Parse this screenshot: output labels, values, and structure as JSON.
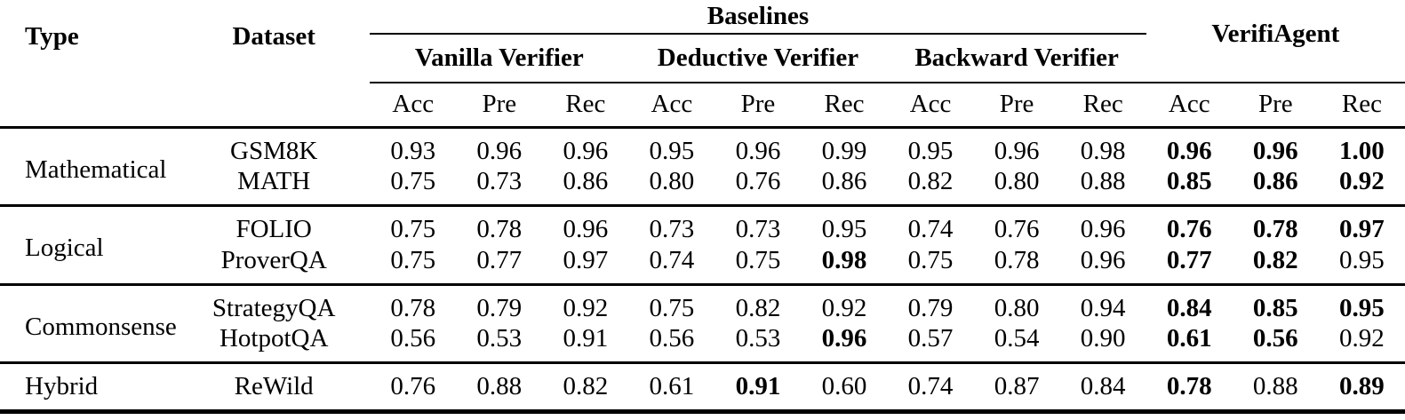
{
  "table": {
    "colors": {
      "text": "#000000",
      "background": "#ffffff",
      "rule": "#000000"
    },
    "headers": {
      "type": "Type",
      "dataset": "Dataset",
      "baselines_group": "Baselines",
      "verifiagent_group": "VerifiAgent",
      "verifier_groups": [
        "Vanilla Verifier",
        "Deductive Verifier",
        "Backward Verifier"
      ],
      "metric_headers": [
        "Acc",
        "Pre",
        "Rec",
        "Acc",
        "Pre",
        "Rec",
        "Acc",
        "Pre",
        "Rec",
        "Acc",
        "Pre",
        "Rec"
      ]
    },
    "sections": [
      {
        "type": "Mathematical",
        "rows": [
          {
            "dataset": "GSM8K",
            "values": [
              {
                "v": "0.93"
              },
              {
                "v": "0.96"
              },
              {
                "v": "0.96"
              },
              {
                "v": "0.95"
              },
              {
                "v": "0.96"
              },
              {
                "v": "0.99"
              },
              {
                "v": "0.95"
              },
              {
                "v": "0.96"
              },
              {
                "v": "0.98"
              },
              {
                "v": "0.96",
                "b": true
              },
              {
                "v": "0.96",
                "b": true
              },
              {
                "v": "1.00",
                "b": true
              }
            ]
          },
          {
            "dataset": "MATH",
            "values": [
              {
                "v": "0.75"
              },
              {
                "v": "0.73"
              },
              {
                "v": "0.86"
              },
              {
                "v": "0.80"
              },
              {
                "v": "0.76"
              },
              {
                "v": "0.86"
              },
              {
                "v": "0.82"
              },
              {
                "v": "0.80"
              },
              {
                "v": "0.88"
              },
              {
                "v": "0.85",
                "b": true
              },
              {
                "v": "0.86",
                "b": true
              },
              {
                "v": "0.92",
                "b": true
              }
            ]
          }
        ]
      },
      {
        "type": "Logical",
        "rows": [
          {
            "dataset": "FOLIO",
            "values": [
              {
                "v": "0.75"
              },
              {
                "v": "0.78"
              },
              {
                "v": "0.96"
              },
              {
                "v": "0.73"
              },
              {
                "v": "0.73"
              },
              {
                "v": "0.95"
              },
              {
                "v": "0.74"
              },
              {
                "v": "0.76"
              },
              {
                "v": "0.96"
              },
              {
                "v": "0.76",
                "b": true
              },
              {
                "v": "0.78",
                "b": true
              },
              {
                "v": "0.97",
                "b": true
              }
            ]
          },
          {
            "dataset": "ProverQA",
            "values": [
              {
                "v": "0.75"
              },
              {
                "v": "0.77"
              },
              {
                "v": "0.97"
              },
              {
                "v": "0.74"
              },
              {
                "v": "0.75"
              },
              {
                "v": "0.98",
                "b": true
              },
              {
                "v": "0.75"
              },
              {
                "v": "0.78"
              },
              {
                "v": "0.96"
              },
              {
                "v": "0.77",
                "b": true
              },
              {
                "v": "0.82",
                "b": true
              },
              {
                "v": "0.95"
              }
            ]
          }
        ]
      },
      {
        "type": "Commonsense",
        "rows": [
          {
            "dataset": "StrategyQA",
            "values": [
              {
                "v": "0.78"
              },
              {
                "v": "0.79"
              },
              {
                "v": "0.92"
              },
              {
                "v": "0.75"
              },
              {
                "v": "0.82"
              },
              {
                "v": "0.92"
              },
              {
                "v": "0.79"
              },
              {
                "v": "0.80"
              },
              {
                "v": "0.94"
              },
              {
                "v": "0.84",
                "b": true
              },
              {
                "v": "0.85",
                "b": true
              },
              {
                "v": "0.95",
                "b": true
              }
            ]
          },
          {
            "dataset": "HotpotQA",
            "values": [
              {
                "v": "0.56"
              },
              {
                "v": "0.53"
              },
              {
                "v": "0.91"
              },
              {
                "v": "0.56"
              },
              {
                "v": "0.53"
              },
              {
                "v": "0.96",
                "b": true
              },
              {
                "v": "0.57"
              },
              {
                "v": "0.54"
              },
              {
                "v": "0.90"
              },
              {
                "v": "0.61",
                "b": true
              },
              {
                "v": "0.56",
                "b": true
              },
              {
                "v": "0.92"
              }
            ]
          }
        ]
      },
      {
        "type": "Hybrid",
        "rows": [
          {
            "dataset": "ReWild",
            "values": [
              {
                "v": "0.76"
              },
              {
                "v": "0.88"
              },
              {
                "v": "0.82"
              },
              {
                "v": "0.61"
              },
              {
                "v": "0.91",
                "b": true
              },
              {
                "v": "0.60"
              },
              {
                "v": "0.74"
              },
              {
                "v": "0.87"
              },
              {
                "v": "0.84"
              },
              {
                "v": "0.78",
                "b": true
              },
              {
                "v": "0.88"
              },
              {
                "v": "0.89",
                "b": true
              }
            ]
          }
        ]
      }
    ]
  }
}
